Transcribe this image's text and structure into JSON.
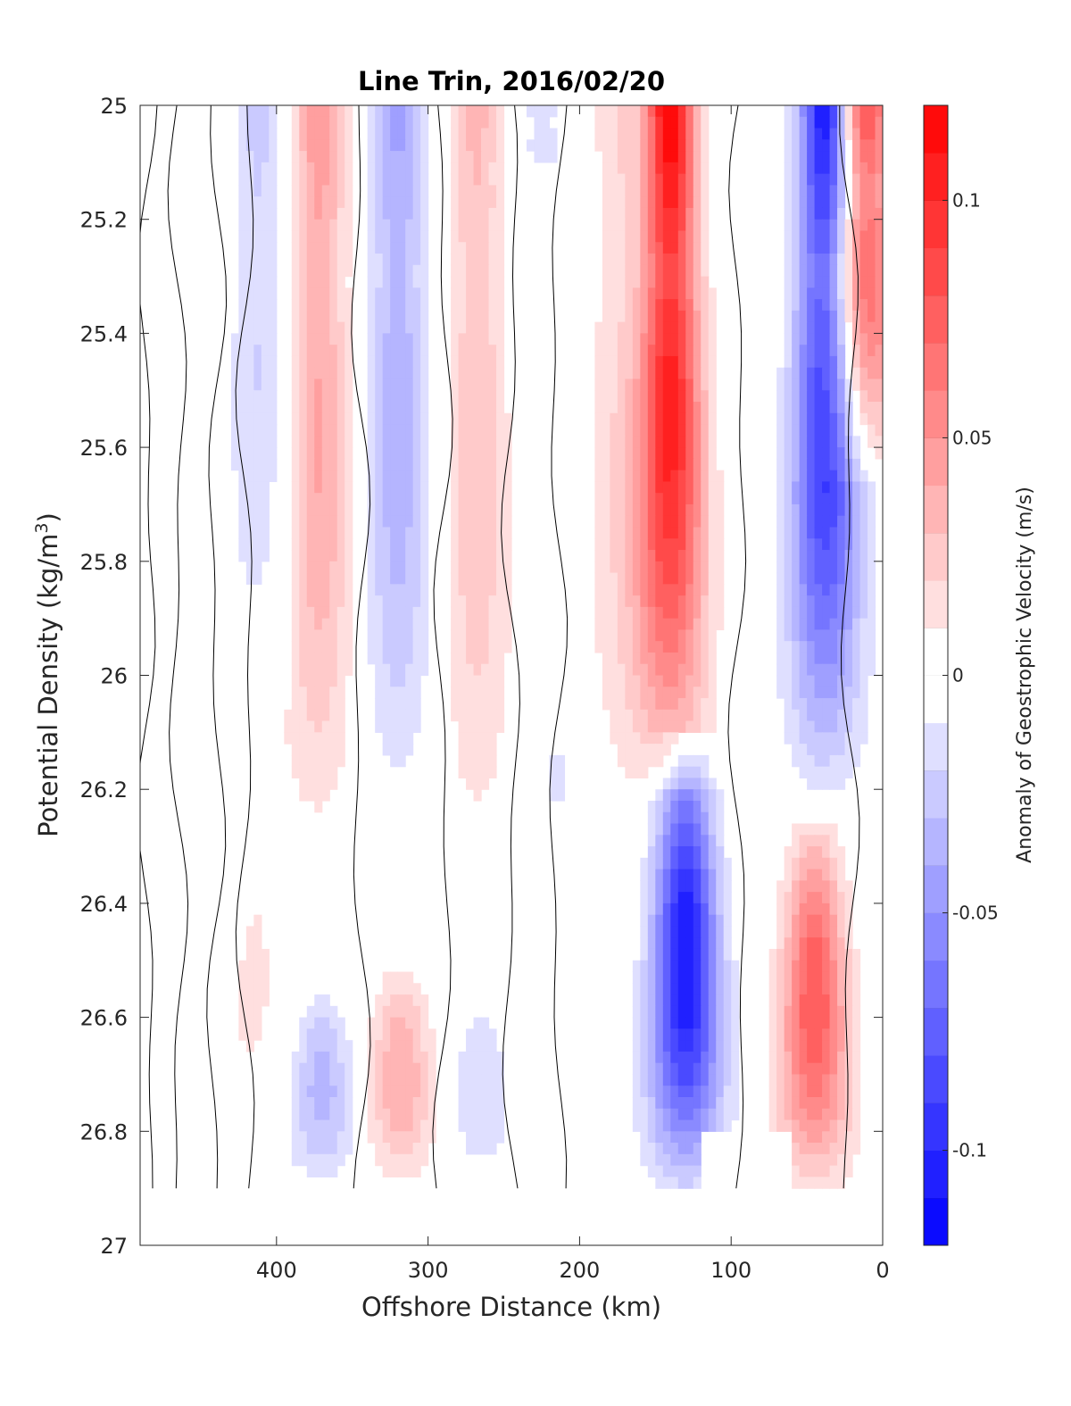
{
  "chart_data": {
    "type": "heatmap",
    "title": "Line Trin, 2016/02/20",
    "xlabel": "Offshore Distance (km)",
    "ylabel_main": "Potential Density (kg/m",
    "ylabel_sup": "3",
    "ylabel_close": ")",
    "xlim": [
      490,
      0
    ],
    "ylim": [
      25,
      27
    ],
    "y_reversed": true,
    "x_reversed": true,
    "xticks": [
      400,
      300,
      200,
      100,
      0
    ],
    "xtick_labels": [
      "400",
      "300",
      "200",
      "100",
      "0"
    ],
    "yticks": [
      25,
      25.2,
      25.4,
      25.6,
      25.8,
      26,
      26.2,
      26.4,
      26.6,
      26.8,
      27
    ],
    "ytick_labels": [
      "25",
      "25.2",
      "25.4",
      "25.6",
      "25.8",
      "26",
      "26.2",
      "26.4",
      "26.6",
      "26.8",
      "27"
    ],
    "data_bottom_density": 26.9,
    "colorbar": {
      "label": "Anomaly of Geostrophic Velocity (m/s)",
      "range": [
        -0.12,
        0.12
      ],
      "step": 0.01,
      "ticks": [
        0.1,
        0.05,
        0,
        -0.05,
        -0.1
      ],
      "tick_labels": [
        "0.1",
        "0.05",
        "0",
        "-0.05",
        "-0.1"
      ]
    },
    "colormap": {
      "negative": "#0000ff",
      "zero": "#ffffff",
      "positive": "#ff0000"
    },
    "field_description_units": "m/s",
    "bands": [
      {
        "x": 445,
        "amp": 0.004,
        "top": 25.0,
        "bottom": 26.9
      },
      {
        "x": 412,
        "amp": -0.025,
        "top": 25.0,
        "bottom": 26.05
      },
      {
        "x": 440,
        "amp": -0.012,
        "top": 26.0,
        "bottom": 26.5
      },
      {
        "x": 415,
        "amp": 0.012,
        "top": 26.05,
        "bottom": 26.9
      },
      {
        "x": 372,
        "amp": 0.05,
        "top": 25.0,
        "bottom": 26.3
      },
      {
        "x": 370,
        "amp": -0.035,
        "top": 26.55,
        "bottom": 26.9
      },
      {
        "x": 320,
        "amp": -0.045,
        "top": 25.0,
        "bottom": 26.25
      },
      {
        "x": 318,
        "amp": 0.04,
        "top": 26.5,
        "bottom": 26.9
      },
      {
        "x": 268,
        "amp": 0.035,
        "top": 25.0,
        "bottom": 26.35
      },
      {
        "x": 265,
        "amp": -0.018,
        "top": 26.55,
        "bottom": 26.9
      },
      {
        "x": 225,
        "amp": -0.015,
        "top": 25.0,
        "bottom": 25.15
      },
      {
        "x": 215,
        "amp": -0.012,
        "top": 26.05,
        "bottom": 26.3
      },
      {
        "x": 140,
        "amp": 0.125,
        "top": 25.0,
        "bottom": 26.2
      },
      {
        "x": 175,
        "amp": 0.02,
        "top": 25.0,
        "bottom": 26.3
      },
      {
        "x": 38,
        "amp": -0.115,
        "top": 25.0,
        "bottom": 26.2
      },
      {
        "x": 130,
        "amp": -0.11,
        "top": 26.1,
        "bottom": 26.9
      },
      {
        "x": 45,
        "amp": 0.08,
        "top": 26.25,
        "bottom": 26.9
      },
      {
        "x": 12,
        "amp": 0.09,
        "top": 25.0,
        "bottom": 25.65
      }
    ],
    "mask_region": {
      "x": [
        60,
        120
      ],
      "density": [
        26.8,
        27
      ]
    },
    "contour_x_positions": [
      485,
      465,
      440,
      420,
      345,
      290,
      245,
      215,
      95,
      22
    ]
  }
}
